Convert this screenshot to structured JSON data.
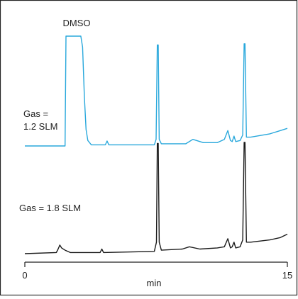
{
  "chart_data": {
    "type": "line",
    "xlabel": "min",
    "x_range": [
      0,
      15
    ],
    "x_ticks": [
      "0",
      "15"
    ],
    "grid": false,
    "annotations": [
      {
        "id": "dmso",
        "text": "DMSO"
      },
      {
        "id": "gas-top",
        "lines": [
          "Gas =",
          "1.2 SLM"
        ]
      },
      {
        "id": "gas-bottom",
        "text": "Gas = 1.8 SLM"
      }
    ],
    "series": [
      {
        "color": "#29a8dc",
        "points": [
          [
            0.0,
            0.0
          ],
          [
            2.3,
            0.0
          ],
          [
            2.35,
            1.0
          ],
          [
            3.2,
            1.0
          ],
          [
            3.3,
            0.9
          ],
          [
            3.4,
            0.45
          ],
          [
            3.5,
            0.15
          ],
          [
            3.6,
            0.05
          ],
          [
            3.8,
            0.01
          ],
          [
            4.6,
            0.01
          ],
          [
            4.7,
            0.045
          ],
          [
            4.8,
            0.01
          ],
          [
            7.4,
            0.01
          ],
          [
            7.5,
            0.06
          ],
          [
            7.57,
            0.92
          ],
          [
            7.62,
            0.92
          ],
          [
            7.68,
            0.06
          ],
          [
            7.8,
            0.02
          ],
          [
            9.2,
            0.02
          ],
          [
            9.6,
            0.06
          ],
          [
            10.2,
            0.03
          ],
          [
            11.0,
            0.03
          ],
          [
            11.4,
            0.06
          ],
          [
            11.6,
            0.14
          ],
          [
            11.75,
            0.05
          ],
          [
            11.85,
            0.04
          ],
          [
            11.95,
            0.09
          ],
          [
            12.05,
            0.04
          ],
          [
            12.3,
            0.05
          ],
          [
            12.45,
            0.1
          ],
          [
            12.53,
            0.93
          ],
          [
            12.58,
            0.93
          ],
          [
            12.66,
            0.08
          ],
          [
            12.9,
            0.08
          ],
          [
            14.0,
            0.11
          ],
          [
            14.6,
            0.14
          ],
          [
            15.0,
            0.16
          ]
        ]
      },
      {
        "color": "#1a1a1a",
        "points": [
          [
            0.0,
            0.0
          ],
          [
            1.8,
            0.01
          ],
          [
            1.9,
            0.04
          ],
          [
            2.0,
            0.075
          ],
          [
            2.1,
            0.05
          ],
          [
            2.3,
            0.03
          ],
          [
            2.6,
            0.01
          ],
          [
            4.3,
            0.01
          ],
          [
            4.4,
            0.04
          ],
          [
            4.5,
            0.01
          ],
          [
            7.4,
            0.02
          ],
          [
            7.52,
            0.1
          ],
          [
            7.57,
            0.96
          ],
          [
            7.62,
            0.96
          ],
          [
            7.68,
            0.1
          ],
          [
            7.8,
            0.03
          ],
          [
            9.0,
            0.04
          ],
          [
            9.4,
            0.06
          ],
          [
            10.0,
            0.04
          ],
          [
            11.0,
            0.05
          ],
          [
            11.4,
            0.06
          ],
          [
            11.6,
            0.13
          ],
          [
            11.75,
            0.05
          ],
          [
            11.85,
            0.06
          ],
          [
            11.95,
            0.1
          ],
          [
            12.05,
            0.05
          ],
          [
            12.3,
            0.06
          ],
          [
            12.45,
            0.12
          ],
          [
            12.53,
            0.97
          ],
          [
            12.58,
            0.97
          ],
          [
            12.66,
            0.1
          ],
          [
            12.9,
            0.1
          ],
          [
            14.0,
            0.12
          ],
          [
            14.6,
            0.14
          ],
          [
            15.0,
            0.17
          ]
        ]
      }
    ]
  }
}
